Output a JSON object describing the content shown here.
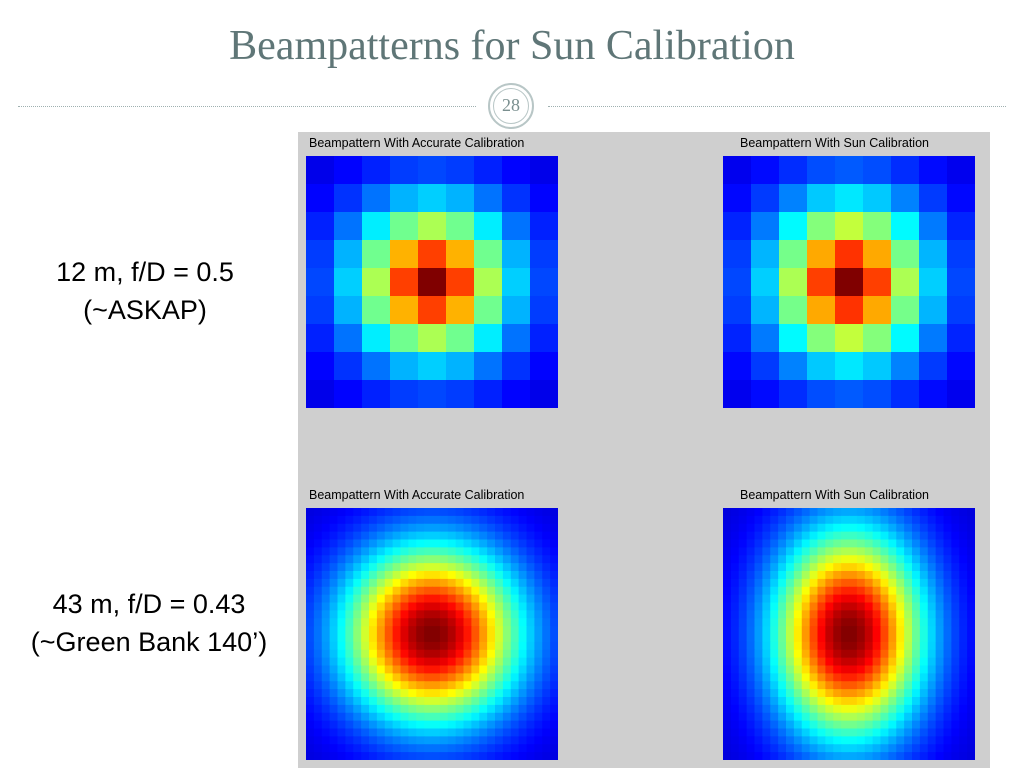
{
  "slide": {
    "title": "Beampatterns for Sun Calibration",
    "page_number": "28"
  },
  "rows": [
    {
      "label_line1": "12 m, f/D = 0.5",
      "label_line2": "(~ASKAP)"
    },
    {
      "label_line1": "43 m, f/D = 0.43",
      "label_line2": "(~Green Bank 140’)"
    }
  ],
  "plots": [
    {
      "title": "Beampattern With Accurate Calibration",
      "colormap": "jet",
      "grid": 9
    },
    {
      "title": "Beampattern With Sun Calibration",
      "colormap": "jet",
      "grid": 9
    },
    {
      "title": "Beampattern With Accurate Calibration",
      "colormap": "jet",
      "grid": 32
    },
    {
      "title": "Beampattern With Sun Calibration",
      "colormap": "jet",
      "grid": 32
    }
  ],
  "colors": {
    "title": "#5f7677",
    "panel_background": "#cfcfcf"
  }
}
